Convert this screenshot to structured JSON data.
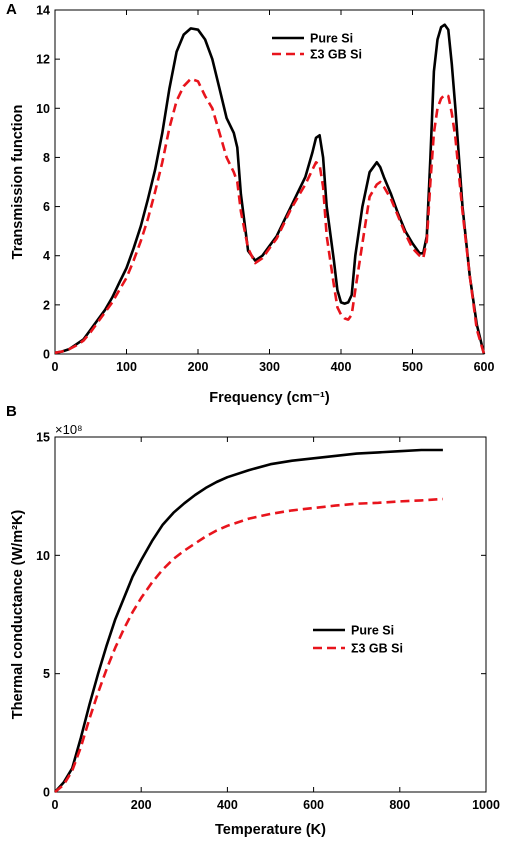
{
  "panel_labels": [
    "A",
    "B"
  ],
  "chart_data": [
    {
      "type": "line",
      "panel": "A",
      "title": "",
      "xlabel": "Frequency (cm⁻¹)",
      "ylabel": "Transmission function",
      "xlim": [
        0,
        600
      ],
      "ylim": [
        0,
        14
      ],
      "xticks": [
        0,
        100,
        200,
        300,
        400,
        500,
        600
      ],
      "yticks": [
        0,
        2,
        4,
        6,
        8,
        10,
        12,
        14
      ],
      "grid": false,
      "legend_position": "top-center",
      "series": [
        {
          "name": "Pure Si",
          "color": "#000000",
          "style": "solid",
          "x": [
            0,
            10,
            20,
            30,
            40,
            50,
            60,
            70,
            80,
            90,
            100,
            110,
            120,
            130,
            140,
            150,
            160,
            170,
            180,
            190,
            200,
            210,
            220,
            230,
            240,
            250,
            255,
            260,
            270,
            280,
            290,
            300,
            310,
            320,
            330,
            340,
            350,
            360,
            365,
            370,
            375,
            380,
            390,
            395,
            400,
            405,
            410,
            415,
            420,
            430,
            440,
            450,
            455,
            460,
            470,
            480,
            490,
            500,
            510,
            515,
            520,
            525,
            530,
            535,
            540,
            545,
            550,
            555,
            560,
            570,
            580,
            590,
            600
          ],
          "y": [
            0.05,
            0.1,
            0.2,
            0.4,
            0.6,
            1.0,
            1.4,
            1.8,
            2.3,
            2.9,
            3.5,
            4.3,
            5.2,
            6.3,
            7.5,
            9.0,
            10.8,
            12.3,
            13.0,
            13.25,
            13.2,
            12.8,
            12.0,
            10.8,
            9.6,
            9.0,
            8.4,
            6.5,
            4.2,
            3.8,
            4.0,
            4.4,
            4.8,
            5.4,
            6.0,
            6.6,
            7.2,
            8.2,
            8.8,
            8.9,
            8.0,
            6.0,
            3.8,
            2.6,
            2.1,
            2.05,
            2.1,
            2.4,
            4.0,
            6.0,
            7.4,
            7.8,
            7.6,
            7.2,
            6.5,
            5.7,
            5.0,
            4.5,
            4.1,
            4.1,
            4.8,
            8.0,
            11.5,
            12.8,
            13.3,
            13.4,
            13.2,
            11.8,
            10.0,
            6.0,
            3.2,
            1.2,
            0.0
          ]
        },
        {
          "name": "Σ3 GB Si",
          "color": "#e8141c",
          "style": "dashed",
          "x": [
            0,
            10,
            20,
            30,
            40,
            50,
            60,
            70,
            80,
            90,
            100,
            110,
            120,
            130,
            140,
            150,
            160,
            170,
            180,
            190,
            200,
            210,
            220,
            230,
            240,
            250,
            255,
            260,
            270,
            280,
            290,
            300,
            310,
            320,
            330,
            340,
            350,
            360,
            365,
            370,
            375,
            380,
            390,
            395,
            400,
            405,
            410,
            415,
            420,
            430,
            440,
            450,
            455,
            460,
            470,
            480,
            490,
            500,
            510,
            515,
            520,
            525,
            530,
            535,
            540,
            545,
            550,
            555,
            560,
            570,
            580,
            590,
            600
          ],
          "y": [
            0.05,
            0.1,
            0.2,
            0.35,
            0.55,
            0.9,
            1.3,
            1.7,
            2.1,
            2.6,
            3.1,
            3.8,
            4.6,
            5.5,
            6.6,
            7.8,
            9.2,
            10.3,
            10.9,
            11.2,
            11.1,
            10.5,
            10.0,
            9.0,
            8.0,
            7.4,
            7.0,
            5.8,
            4.3,
            3.7,
            3.9,
            4.3,
            4.7,
            5.3,
            5.9,
            6.4,
            6.9,
            7.5,
            7.8,
            7.7,
            6.8,
            4.8,
            2.8,
            1.9,
            1.6,
            1.45,
            1.4,
            1.6,
            2.6,
            4.5,
            6.4,
            6.9,
            7.0,
            6.8,
            6.3,
            5.6,
            4.9,
            4.3,
            4.0,
            3.9,
            4.6,
            7.0,
            9.0,
            10.0,
            10.4,
            10.55,
            10.5,
            9.8,
            8.8,
            5.8,
            3.2,
            1.0,
            0.0
          ]
        }
      ]
    },
    {
      "type": "line",
      "panel": "B",
      "title": "",
      "xlabel": "Temperature (K)",
      "ylabel": "Thermal conductance (W/m²K)",
      "exponent_label": "×10⁸",
      "xlim": [
        0,
        1000
      ],
      "ylim": [
        0,
        15
      ],
      "xticks": [
        0,
        200,
        400,
        600,
        800,
        1000
      ],
      "yticks": [
        0,
        5,
        10,
        15
      ],
      "grid": false,
      "legend_position": "center-right",
      "series": [
        {
          "name": "Pure Si",
          "color": "#000000",
          "style": "solid",
          "x": [
            0,
            20,
            40,
            60,
            80,
            100,
            120,
            140,
            160,
            180,
            200,
            225,
            250,
            275,
            300,
            325,
            350,
            375,
            400,
            450,
            500,
            550,
            600,
            650,
            700,
            750,
            800,
            850,
            900
          ],
          "y": [
            0,
            0.4,
            1.0,
            2.3,
            3.7,
            5.0,
            6.2,
            7.3,
            8.2,
            9.1,
            9.8,
            10.6,
            11.3,
            11.8,
            12.2,
            12.55,
            12.85,
            13.1,
            13.3,
            13.6,
            13.85,
            14.0,
            14.1,
            14.2,
            14.3,
            14.35,
            14.4,
            14.45,
            14.45
          ]
        },
        {
          "name": "Σ3 GB Si",
          "color": "#e8141c",
          "style": "dashed",
          "x": [
            0,
            20,
            40,
            60,
            80,
            100,
            120,
            140,
            160,
            180,
            200,
            225,
            250,
            275,
            300,
            325,
            350,
            375,
            400,
            450,
            500,
            550,
            600,
            650,
            700,
            750,
            800,
            850,
            900
          ],
          "y": [
            0,
            0.3,
            0.9,
            1.9,
            3.1,
            4.2,
            5.2,
            6.1,
            6.9,
            7.6,
            8.2,
            8.85,
            9.4,
            9.85,
            10.2,
            10.5,
            10.8,
            11.05,
            11.25,
            11.55,
            11.75,
            11.9,
            12.0,
            12.1,
            12.18,
            12.22,
            12.28,
            12.32,
            12.38
          ]
        }
      ]
    }
  ]
}
